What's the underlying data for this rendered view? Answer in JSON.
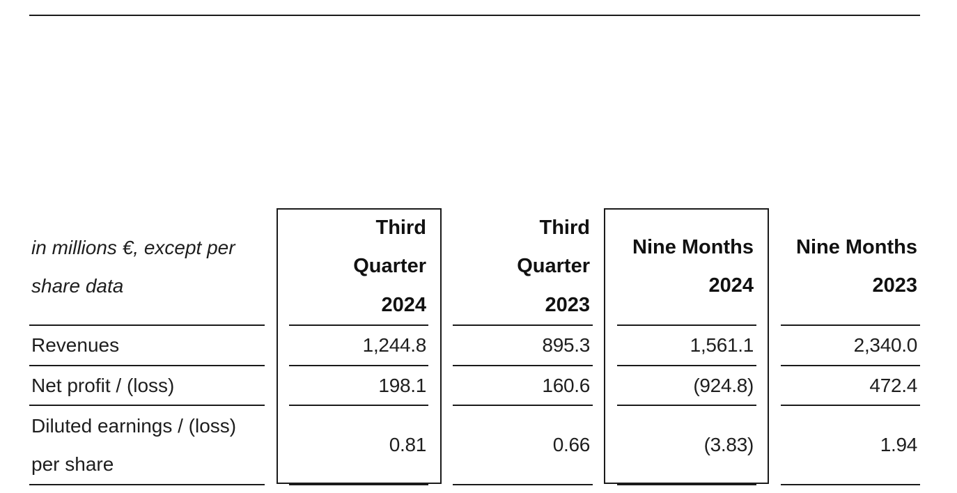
{
  "table": {
    "unit_label": "in millions €, except per\nshare data",
    "columns": [
      {
        "label": "Third\nQuarter\n2024",
        "highlighted": true
      },
      {
        "label": "Third\nQuarter\n2023",
        "highlighted": false
      },
      {
        "label": "Nine Months\n2024",
        "highlighted": true
      },
      {
        "label": "Nine Months\n2023",
        "highlighted": false
      }
    ],
    "rows": [
      {
        "label": "Revenues",
        "values": [
          "1,244.8",
          "895.3",
          "1,561.1",
          "2,340.0"
        ]
      },
      {
        "label": "Net profit / (loss)",
        "values": [
          "198.1",
          "160.6",
          "(924.8)",
          "472.4"
        ]
      },
      {
        "label": "Diluted earnings / (loss)\nper share",
        "values": [
          "0.81",
          "0.66",
          "(3.83)",
          "1.94"
        ]
      }
    ]
  }
}
